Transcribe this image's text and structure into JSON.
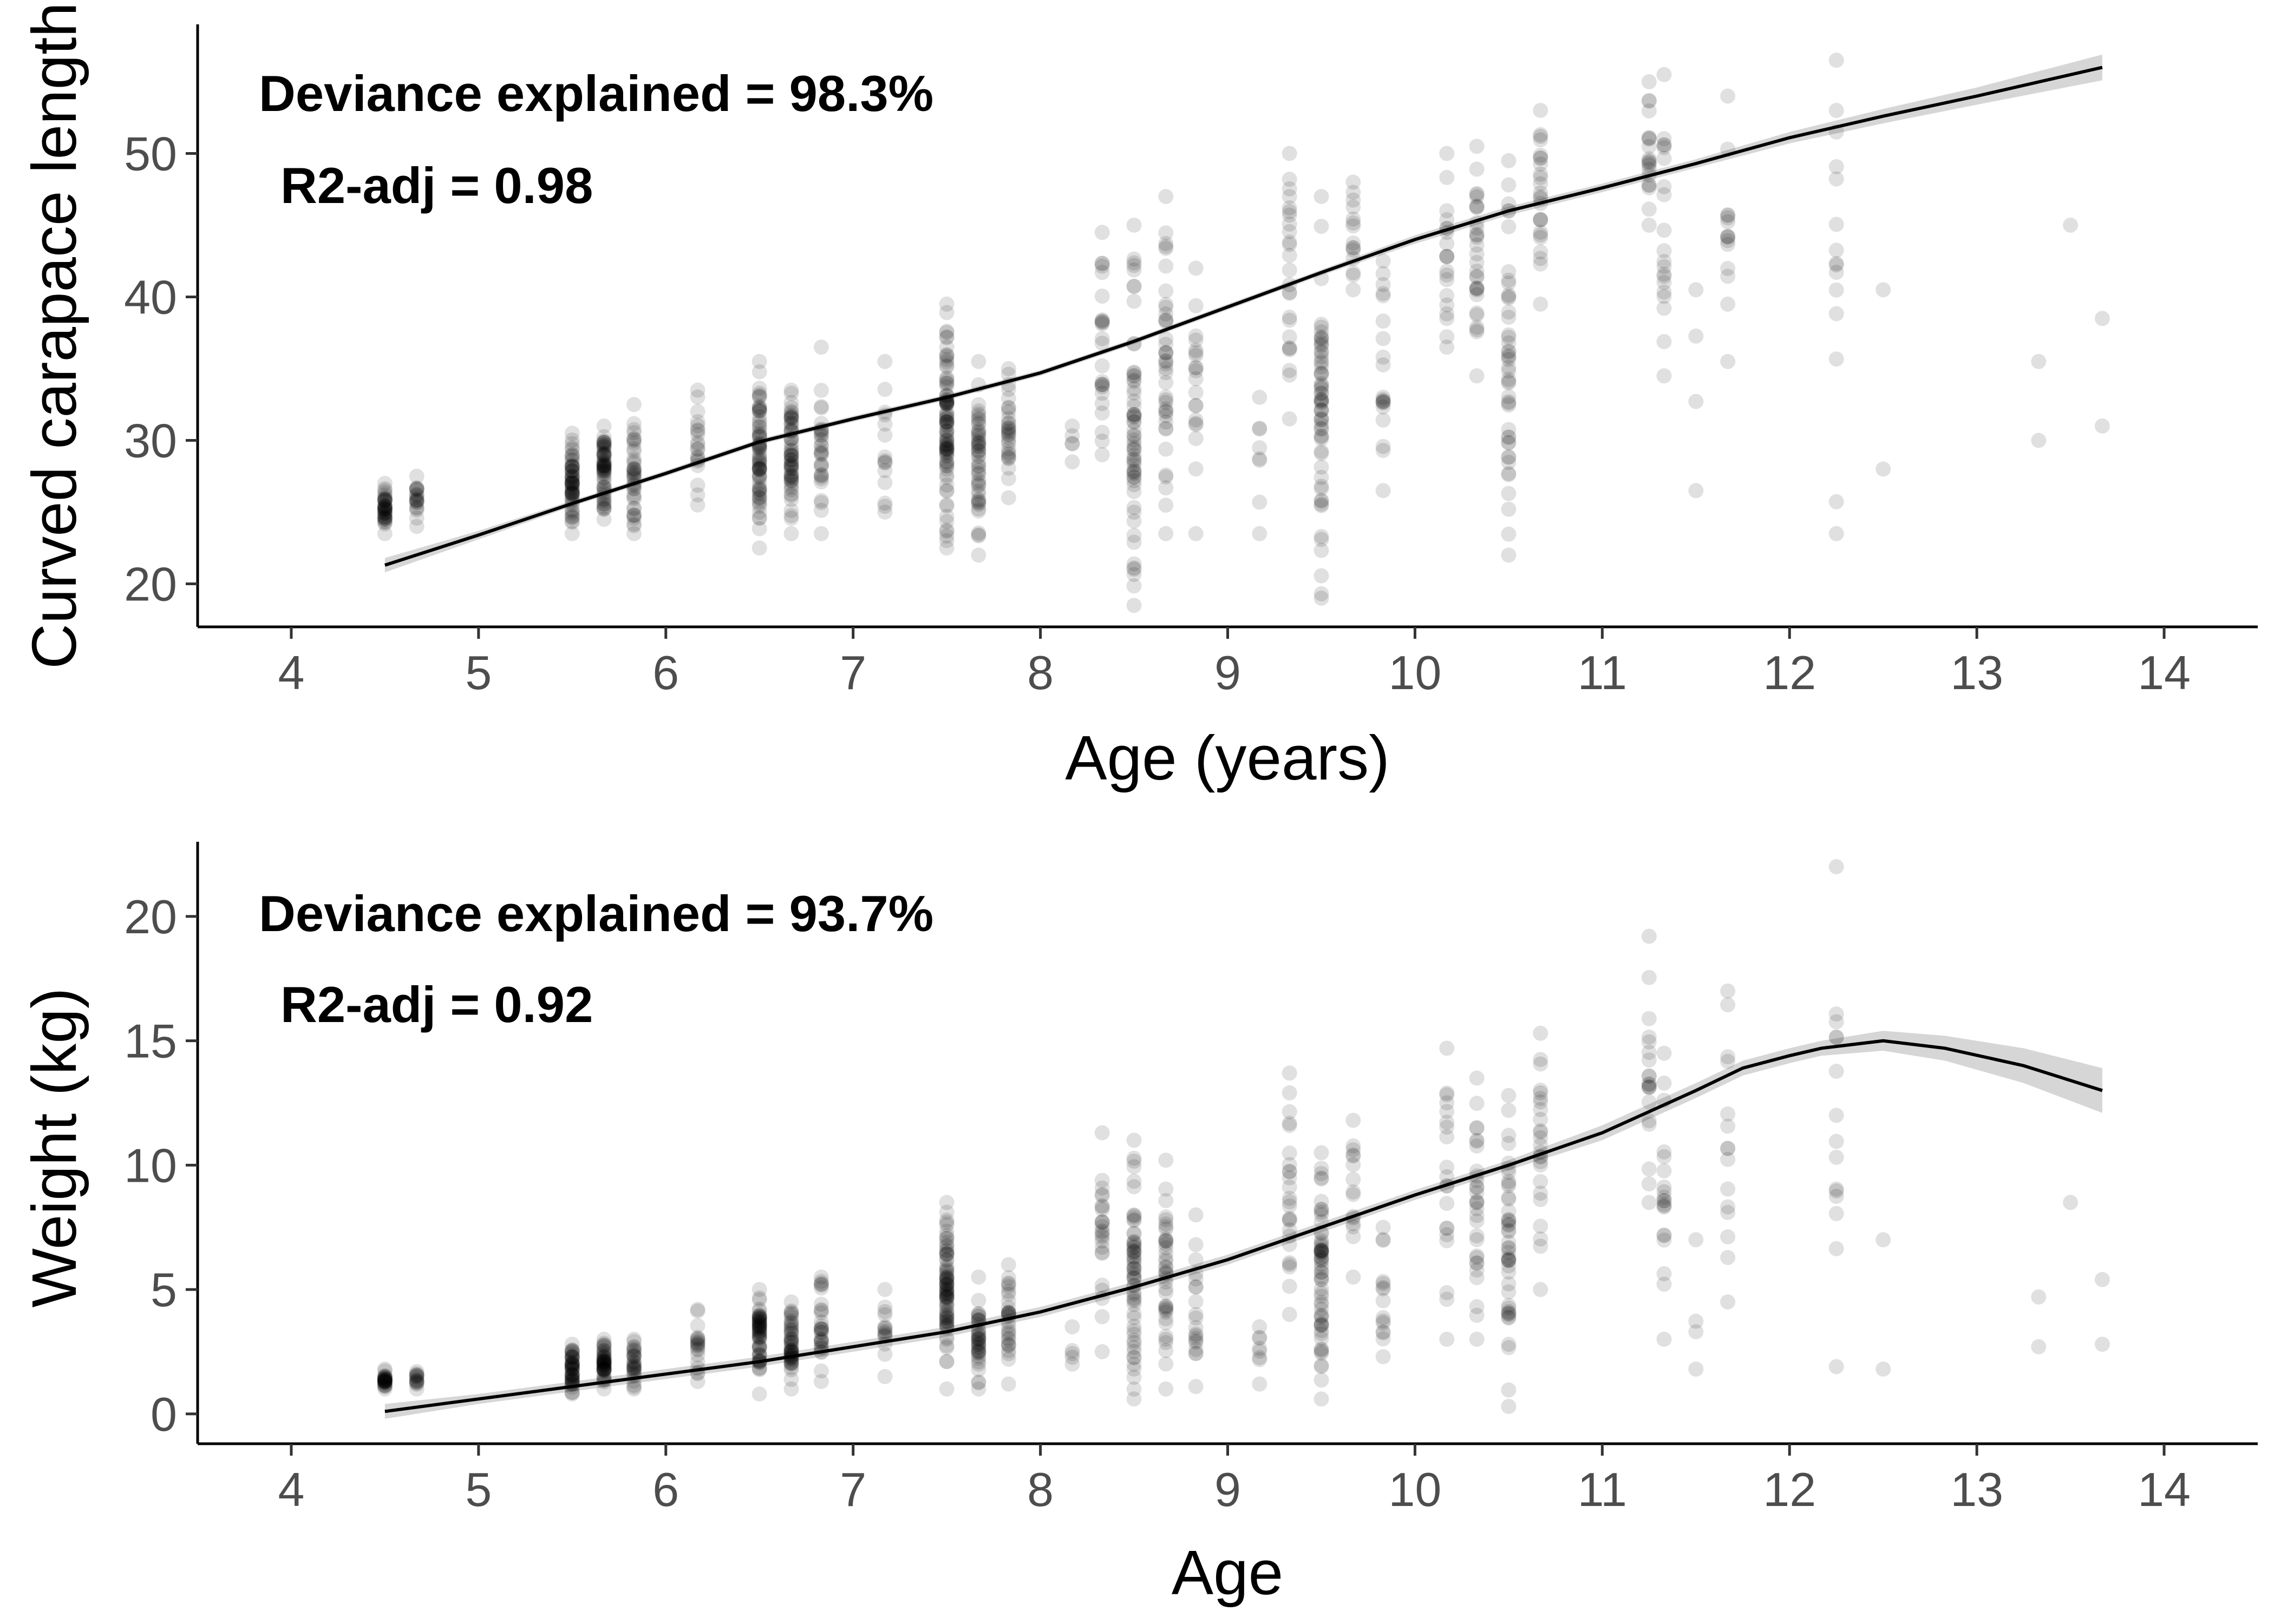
{
  "chart_data": [
    {
      "type": "scatter",
      "xlabel": "Age (years)",
      "ylabel": "Curved carapace length",
      "xlim": [
        3.5,
        14.5
      ],
      "ylim": [
        17,
        59
      ],
      "xticks": [
        4,
        5,
        6,
        7,
        8,
        9,
        10,
        11,
        12,
        13,
        14
      ],
      "yticks": [
        20,
        30,
        40,
        50
      ],
      "annotations": [
        "Deviance explained = 98.3%",
        "R2-adj = 0.98"
      ],
      "grid": false,
      "x_groups": [
        4.5,
        4.67,
        5.5,
        5.67,
        5.83,
        6.17,
        6.5,
        6.67,
        6.83,
        7.17,
        7.5,
        7.67,
        7.83,
        8.17,
        8.33,
        8.5,
        8.67,
        8.83,
        9.17,
        9.33,
        9.5,
        9.67,
        9.83,
        10.17,
        10.33,
        10.5,
        10.67,
        11.25,
        11.33,
        11.5,
        11.67,
        12.25,
        12.5,
        13.33,
        13.5,
        13.67
      ],
      "point_ranges": [
        [
          4.5,
          23.5,
          27.0,
          40
        ],
        [
          4.67,
          24.0,
          27.5,
          20
        ],
        [
          5.5,
          23.5,
          30.5,
          60
        ],
        [
          5.67,
          24.5,
          31.0,
          60
        ],
        [
          5.83,
          23.5,
          32.5,
          40
        ],
        [
          6.17,
          25.5,
          33.5,
          20
        ],
        [
          6.5,
          22.5,
          35.5,
          70
        ],
        [
          6.67,
          23.5,
          33.5,
          60
        ],
        [
          6.83,
          23.5,
          36.5,
          30
        ],
        [
          7.17,
          25.0,
          35.5,
          15
        ],
        [
          7.5,
          22.5,
          39.5,
          90
        ],
        [
          7.67,
          22.0,
          35.5,
          50
        ],
        [
          7.83,
          26.0,
          35.0,
          30
        ],
        [
          8.17,
          28.5,
          31.0,
          5
        ],
        [
          8.33,
          29.0,
          44.5,
          25
        ],
        [
          8.5,
          18.5,
          45.0,
          60
        ],
        [
          8.67,
          23.5,
          47.0,
          40
        ],
        [
          8.83,
          23.5,
          42.0,
          20
        ],
        [
          9.17,
          23.5,
          33.0,
          8
        ],
        [
          9.33,
          31.5,
          50.0,
          25
        ],
        [
          9.5,
          19.0,
          47.0,
          60
        ],
        [
          9.67,
          40.5,
          48.0,
          15
        ],
        [
          9.83,
          26.5,
          42.5,
          20
        ],
        [
          10.17,
          36.5,
          50.0,
          20
        ],
        [
          10.33,
          34.5,
          50.5,
          30
        ],
        [
          10.5,
          22.0,
          49.5,
          45
        ],
        [
          10.67,
          39.5,
          53.0,
          25
        ],
        [
          11.25,
          45.0,
          55.0,
          20
        ],
        [
          11.33,
          34.5,
          55.5,
          20
        ],
        [
          11.5,
          26.5,
          40.5,
          4
        ],
        [
          11.67,
          35.5,
          54.0,
          15
        ],
        [
          12.25,
          23.5,
          56.5,
          15
        ],
        [
          12.5,
          28.0,
          40.5,
          2
        ],
        [
          13.33,
          30.0,
          35.5,
          2
        ],
        [
          13.5,
          45.0,
          45.0,
          1
        ],
        [
          13.67,
          31.0,
          38.5,
          2
        ]
      ],
      "series": [
        {
          "kind": "fit",
          "x": [
            4.5,
            5.0,
            5.5,
            6.0,
            6.5,
            7.0,
            7.5,
            8.0,
            8.5,
            9.0,
            9.5,
            10.0,
            10.5,
            11.0,
            11.5,
            12.0,
            12.5,
            13.0,
            13.67
          ],
          "values": [
            21.3,
            23.4,
            25.6,
            27.7,
            29.9,
            31.5,
            33.0,
            34.7,
            36.9,
            39.3,
            41.7,
            44.0,
            46.0,
            47.6,
            49.3,
            51.1,
            52.6,
            54.0,
            56.0
          ],
          "ci_halfwidth": [
            0.5,
            0.3,
            0.2,
            0.2,
            0.2,
            0.2,
            0.2,
            0.2,
            0.2,
            0.2,
            0.2,
            0.3,
            0.3,
            0.3,
            0.3,
            0.4,
            0.5,
            0.6,
            0.9
          ]
        }
      ]
    },
    {
      "type": "scatter",
      "xlabel": "Age",
      "ylabel": "Weight (kg)",
      "xlim": [
        3.5,
        14.5
      ],
      "ylim": [
        -1.2,
        23
      ],
      "xticks": [
        4,
        5,
        6,
        7,
        8,
        9,
        10,
        11,
        12,
        13,
        14
      ],
      "yticks": [
        0,
        5,
        10,
        15,
        20
      ],
      "annotations": [
        "Deviance explained = 93.7%",
        "R2-adj = 0.92"
      ],
      "grid": false,
      "point_ranges": [
        [
          4.5,
          1.0,
          1.8,
          30
        ],
        [
          4.67,
          1.0,
          1.7,
          15
        ],
        [
          5.5,
          0.8,
          2.8,
          50
        ],
        [
          5.67,
          1.0,
          3.0,
          50
        ],
        [
          5.83,
          1.0,
          3.0,
          30
        ],
        [
          6.17,
          1.3,
          4.2,
          20
        ],
        [
          6.5,
          0.8,
          5.0,
          60
        ],
        [
          6.67,
          1.0,
          4.5,
          50
        ],
        [
          6.83,
          1.3,
          5.5,
          30
        ],
        [
          7.17,
          1.5,
          5.0,
          15
        ],
        [
          7.5,
          1.0,
          8.5,
          80
        ],
        [
          7.67,
          1.0,
          5.5,
          40
        ],
        [
          7.83,
          1.2,
          6.0,
          30
        ],
        [
          8.17,
          2.0,
          3.5,
          5
        ],
        [
          8.33,
          2.5,
          11.3,
          25
        ],
        [
          8.5,
          0.6,
          11.0,
          60
        ],
        [
          8.67,
          1.0,
          10.2,
          40
        ],
        [
          8.83,
          1.1,
          8.0,
          20
        ],
        [
          9.17,
          1.2,
          3.5,
          8
        ],
        [
          9.33,
          4.0,
          13.7,
          25
        ],
        [
          9.5,
          0.6,
          10.5,
          60
        ],
        [
          9.67,
          5.5,
          11.8,
          15
        ],
        [
          9.83,
          2.3,
          7.5,
          15
        ],
        [
          10.17,
          3.0,
          14.7,
          20
        ],
        [
          10.33,
          3.0,
          13.5,
          30
        ],
        [
          10.5,
          0.3,
          12.8,
          45
        ],
        [
          10.67,
          5.0,
          15.3,
          25
        ],
        [
          11.25,
          8.5,
          19.2,
          20
        ],
        [
          11.33,
          3.0,
          14.5,
          20
        ],
        [
          11.5,
          1.8,
          7.0,
          4
        ],
        [
          11.67,
          4.5,
          17.0,
          15
        ],
        [
          12.25,
          1.9,
          22.0,
          15
        ],
        [
          12.5,
          1.8,
          7.0,
          2
        ],
        [
          13.33,
          2.7,
          4.7,
          2
        ],
        [
          13.5,
          8.5,
          8.5,
          1
        ],
        [
          13.67,
          2.8,
          5.4,
          2
        ]
      ],
      "series": [
        {
          "kind": "fit",
          "x": [
            4.5,
            5.0,
            5.5,
            6.0,
            6.5,
            7.0,
            7.5,
            8.0,
            8.5,
            9.0,
            9.5,
            10.0,
            10.5,
            11.0,
            11.5,
            11.75,
            12.0,
            12.17,
            12.5,
            12.83,
            13.25,
            13.67
          ],
          "values": [
            0.1,
            0.6,
            1.1,
            1.6,
            2.1,
            2.7,
            3.3,
            4.1,
            5.1,
            6.2,
            7.5,
            8.8,
            10.0,
            11.3,
            13.0,
            13.9,
            14.4,
            14.7,
            15.0,
            14.7,
            14.0,
            13.0
          ],
          "ci_halfwidth": [
            0.3,
            0.2,
            0.2,
            0.2,
            0.2,
            0.2,
            0.2,
            0.2,
            0.2,
            0.2,
            0.2,
            0.2,
            0.2,
            0.3,
            0.3,
            0.3,
            0.3,
            0.3,
            0.4,
            0.5,
            0.7,
            0.9
          ]
        }
      ]
    }
  ]
}
